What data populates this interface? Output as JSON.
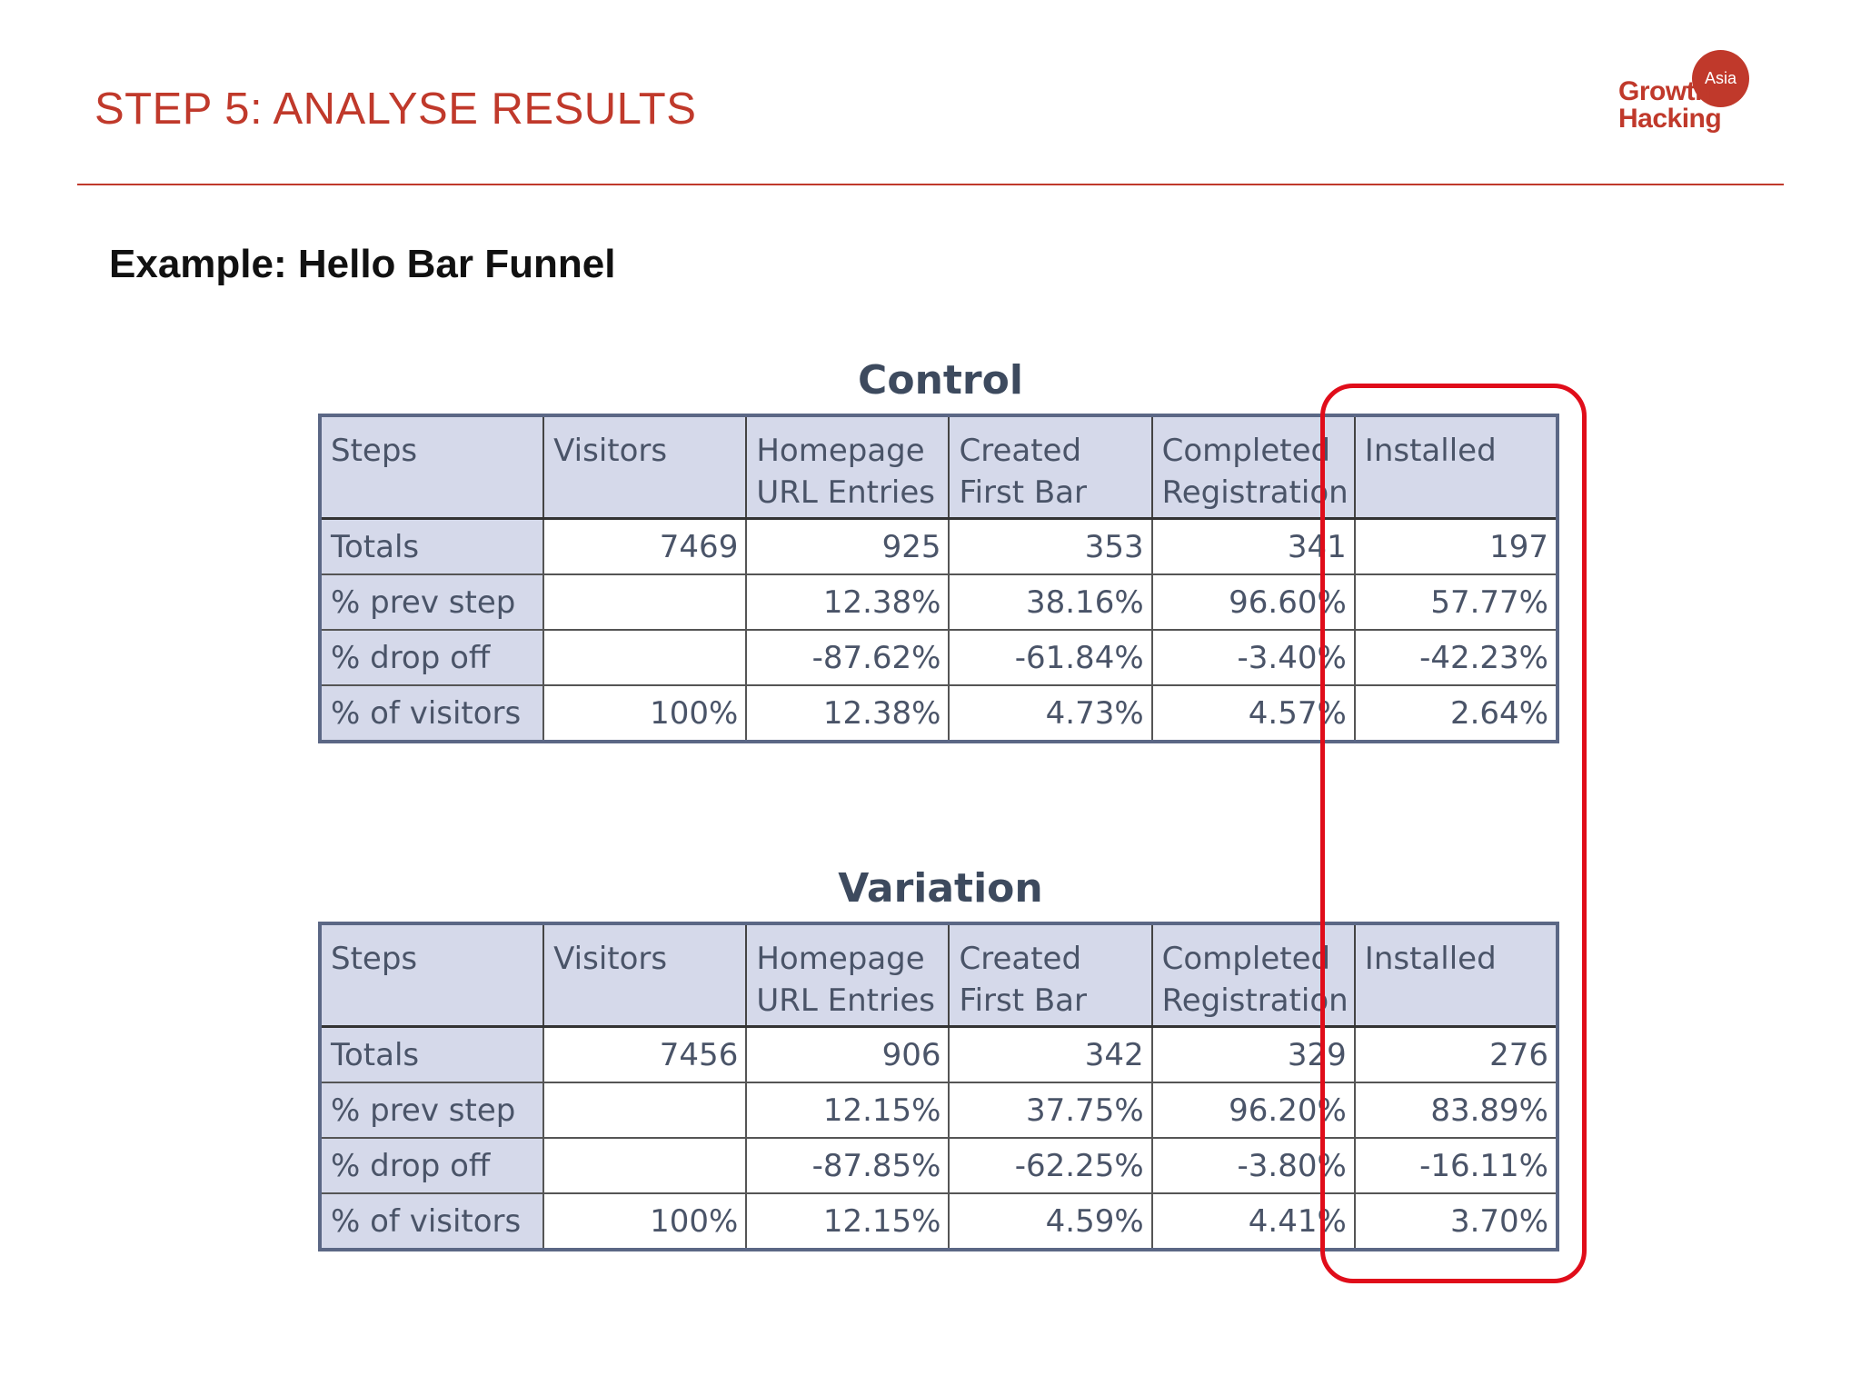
{
  "header": {
    "title": "STEP 5: ANALYSE RESULTS",
    "logo": {
      "badge": "Asia",
      "line1": "Growth",
      "line2": "Hacking",
      "color": "#c0392b"
    }
  },
  "subtitle": "Example: Hello Bar Funnel",
  "tables": [
    {
      "title": "Control",
      "headers": [
        [
          "Steps"
        ],
        [
          "Visitors"
        ],
        [
          "Homepage",
          "URL Entries"
        ],
        [
          "Created",
          "First Bar"
        ],
        [
          "Completed",
          "Registration"
        ],
        [
          "Installed"
        ]
      ],
      "rows": [
        [
          "Totals",
          "7469",
          "925",
          "353",
          "341",
          "197"
        ],
        [
          "% prev step",
          "",
          "12.38%",
          "38.16%",
          "96.60%",
          "57.77%"
        ],
        [
          "% drop off",
          "",
          "-87.62%",
          "-61.84%",
          "-3.40%",
          "-42.23%"
        ],
        [
          "% of visitors",
          "100%",
          "12.38%",
          "4.73%",
          "4.57%",
          "2.64%"
        ]
      ]
    },
    {
      "title": "Variation",
      "headers": [
        [
          "Steps"
        ],
        [
          "Visitors"
        ],
        [
          "Homepage",
          "URL Entries"
        ],
        [
          "Created",
          "First Bar"
        ],
        [
          "Completed",
          "Registration"
        ],
        [
          "Installed"
        ]
      ],
      "rows": [
        [
          "Totals",
          "7456",
          "906",
          "342",
          "329",
          "276"
        ],
        [
          "% prev step",
          "",
          "12.15%",
          "37.75%",
          "96.20%",
          "83.89%"
        ],
        [
          "% drop off",
          "",
          "-87.85%",
          "-62.25%",
          "-3.80%",
          "-16.11%"
        ],
        [
          "% of visitors",
          "100%",
          "12.15%",
          "4.59%",
          "4.41%",
          "3.70%"
        ]
      ]
    }
  ],
  "highlight": {
    "column": "Installed",
    "color": "#e00d1a"
  }
}
